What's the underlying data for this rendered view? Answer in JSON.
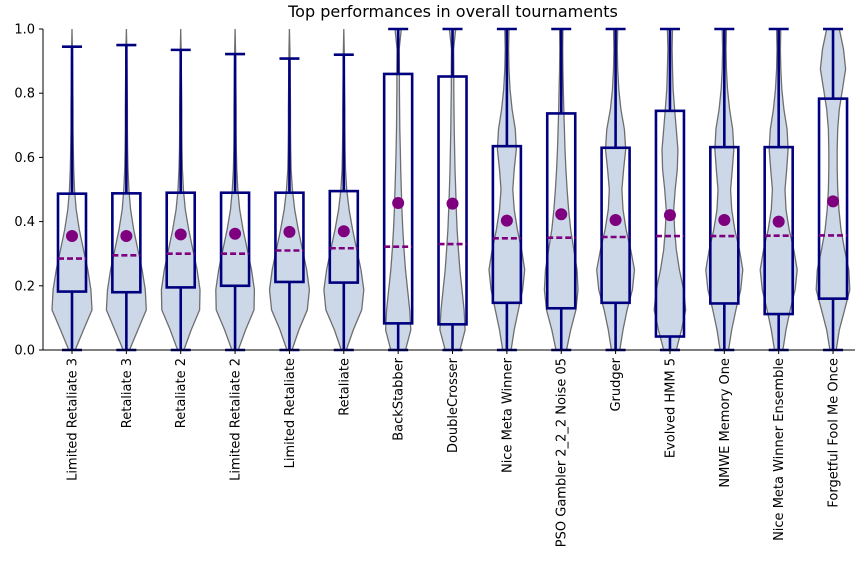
{
  "chart_data": {
    "type": "violin-box",
    "title": "Top performances in overall tournaments",
    "xlabel": "",
    "ylabel": "",
    "ylim": [
      0,
      1
    ],
    "yticks": [
      "0.0",
      "0.2",
      "0.4",
      "0.6",
      "0.8",
      "1.0"
    ],
    "grid": false,
    "colors": {
      "violin_fill": "#ccd8e8",
      "violin_edge": "#6e6e6e",
      "box": "#00007f",
      "median": "#7f007f",
      "mean": "#7f007f"
    },
    "categories": [
      "Limited Retaliate 3",
      "Retaliate 3",
      "Retaliate 2",
      "Limited Retaliate 2",
      "Limited Retaliate",
      "Retaliate",
      "BackStabber",
      "DoubleCrosser",
      "Nice Meta Winner",
      "PSO Gambler 2_2_2 Noise 05",
      "Grudger",
      "Evolved HMM 5",
      "NMWE Memory One",
      "Nice Meta Winner Ensemble",
      "Forgetful Fool Me Once"
    ],
    "boxes": [
      {
        "whislo": 0.0,
        "q1": 0.182,
        "median": 0.285,
        "q3": 0.487,
        "whishi": 0.945,
        "mean": 0.355
      },
      {
        "whislo": 0.0,
        "q1": 0.18,
        "median": 0.295,
        "q3": 0.488,
        "whishi": 0.95,
        "mean": 0.355
      },
      {
        "whislo": 0.0,
        "q1": 0.195,
        "median": 0.3,
        "q3": 0.49,
        "whishi": 0.935,
        "mean": 0.36
      },
      {
        "whislo": 0.0,
        "q1": 0.2,
        "median": 0.3,
        "q3": 0.49,
        "whishi": 0.922,
        "mean": 0.362
      },
      {
        "whislo": 0.0,
        "q1": 0.212,
        "median": 0.31,
        "q3": 0.49,
        "whishi": 0.908,
        "mean": 0.368
      },
      {
        "whislo": 0.0,
        "q1": 0.21,
        "median": 0.317,
        "q3": 0.495,
        "whishi": 0.92,
        "mean": 0.37
      },
      {
        "whislo": 0.0,
        "q1": 0.083,
        "median": 0.322,
        "q3": 0.86,
        "whishi": 1.0,
        "mean": 0.458
      },
      {
        "whislo": 0.0,
        "q1": 0.08,
        "median": 0.33,
        "q3": 0.852,
        "whishi": 1.0,
        "mean": 0.456
      },
      {
        "whislo": 0.0,
        "q1": 0.147,
        "median": 0.348,
        "q3": 0.635,
        "whishi": 1.0,
        "mean": 0.403
      },
      {
        "whislo": 0.0,
        "q1": 0.13,
        "median": 0.35,
        "q3": 0.737,
        "whishi": 1.0,
        "mean": 0.423
      },
      {
        "whislo": 0.0,
        "q1": 0.147,
        "median": 0.352,
        "q3": 0.63,
        "whishi": 1.0,
        "mean": 0.405
      },
      {
        "whislo": 0.0,
        "q1": 0.042,
        "median": 0.355,
        "q3": 0.745,
        "whishi": 1.0,
        "mean": 0.42
      },
      {
        "whislo": 0.0,
        "q1": 0.145,
        "median": 0.355,
        "q3": 0.632,
        "whishi": 1.0,
        "mean": 0.405
      },
      {
        "whislo": 0.0,
        "q1": 0.112,
        "median": 0.356,
        "q3": 0.632,
        "whishi": 1.0,
        "mean": 0.4
      },
      {
        "whislo": 0.0,
        "q1": 0.16,
        "median": 0.357,
        "q3": 0.783,
        "whishi": 1.0,
        "mean": 0.463
      }
    ],
    "violin_widths": [
      [
        0.15,
        0.55,
        0.95,
        0.9,
        0.75,
        0.55,
        0.35,
        0.2,
        0.12,
        0.08,
        0.06,
        0.05,
        0.05,
        0.04,
        0.03,
        0.02,
        0.0
      ],
      [
        0.15,
        0.55,
        0.95,
        0.9,
        0.75,
        0.55,
        0.35,
        0.2,
        0.12,
        0.08,
        0.06,
        0.05,
        0.05,
        0.04,
        0.03,
        0.02,
        0.0
      ],
      [
        0.15,
        0.5,
        0.9,
        0.92,
        0.78,
        0.58,
        0.38,
        0.22,
        0.13,
        0.08,
        0.06,
        0.05,
        0.05,
        0.04,
        0.03,
        0.02,
        0.0
      ],
      [
        0.15,
        0.5,
        0.9,
        0.92,
        0.78,
        0.58,
        0.38,
        0.22,
        0.13,
        0.08,
        0.06,
        0.05,
        0.05,
        0.04,
        0.03,
        0.02,
        0.0
      ],
      [
        0.12,
        0.45,
        0.85,
        0.95,
        0.82,
        0.62,
        0.42,
        0.25,
        0.14,
        0.08,
        0.06,
        0.05,
        0.05,
        0.04,
        0.03,
        0.02,
        0.0
      ],
      [
        0.12,
        0.45,
        0.85,
        0.95,
        0.82,
        0.62,
        0.42,
        0.25,
        0.14,
        0.08,
        0.06,
        0.05,
        0.05,
        0.04,
        0.03,
        0.02,
        0.0
      ],
      [
        0.35,
        0.6,
        0.55,
        0.45,
        0.35,
        0.28,
        0.22,
        0.18,
        0.15,
        0.12,
        0.1,
        0.08,
        0.07,
        0.06,
        0.06,
        0.05,
        0.15
      ],
      [
        0.35,
        0.6,
        0.55,
        0.45,
        0.35,
        0.28,
        0.22,
        0.18,
        0.15,
        0.12,
        0.1,
        0.08,
        0.07,
        0.06,
        0.06,
        0.05,
        0.15
      ],
      [
        0.2,
        0.35,
        0.55,
        0.75,
        0.85,
        0.7,
        0.5,
        0.35,
        0.28,
        0.35,
        0.45,
        0.4,
        0.25,
        0.15,
        0.1,
        0.08,
        0.1
      ],
      [
        0.25,
        0.45,
        0.7,
        0.8,
        0.75,
        0.6,
        0.45,
        0.35,
        0.28,
        0.22,
        0.18,
        0.15,
        0.12,
        0.1,
        0.08,
        0.07,
        0.08
      ],
      [
        0.2,
        0.35,
        0.55,
        0.8,
        0.9,
        0.72,
        0.5,
        0.35,
        0.3,
        0.38,
        0.48,
        0.42,
        0.25,
        0.15,
        0.1,
        0.08,
        0.1
      ],
      [
        0.3,
        0.55,
        0.75,
        0.65,
        0.45,
        0.3,
        0.22,
        0.18,
        0.25,
        0.35,
        0.38,
        0.3,
        0.22,
        0.15,
        0.12,
        0.1,
        0.12
      ],
      [
        0.2,
        0.35,
        0.55,
        0.78,
        0.88,
        0.72,
        0.5,
        0.35,
        0.3,
        0.38,
        0.45,
        0.4,
        0.25,
        0.15,
        0.1,
        0.08,
        0.1
      ],
      [
        0.2,
        0.35,
        0.55,
        0.78,
        0.88,
        0.72,
        0.5,
        0.35,
        0.3,
        0.38,
        0.45,
        0.4,
        0.25,
        0.15,
        0.1,
        0.08,
        0.1
      ],
      [
        0.15,
        0.3,
        0.55,
        0.8,
        0.75,
        0.55,
        0.38,
        0.28,
        0.22,
        0.2,
        0.2,
        0.22,
        0.3,
        0.45,
        0.6,
        0.5,
        0.3
      ]
    ]
  }
}
